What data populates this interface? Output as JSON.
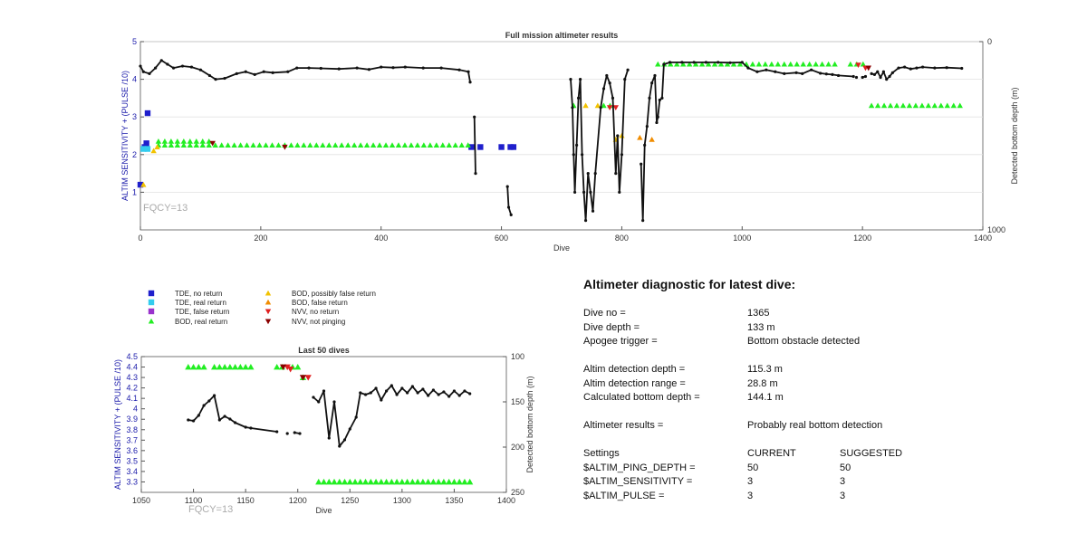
{
  "chart_data": [
    {
      "type": "scatter",
      "title": "Full mission altimeter results",
      "xlabel": "Dive",
      "ylabel": "ALTIM SENSITIVITY + (PULSE /10)",
      "y2label": "Detected bottom depth (m)",
      "xlim": [
        0,
        1400
      ],
      "ylim": [
        0,
        5
      ],
      "y2lim": [
        1000,
        0
      ],
      "x_ticks": [
        "0",
        "200",
        "400",
        "600",
        "800",
        "1000",
        "1200",
        "1400"
      ],
      "y_ticks": [
        "1",
        "2",
        "3",
        "4",
        "5"
      ],
      "y2_ticks": [
        "0",
        "1000"
      ],
      "grid": "horizontal",
      "annotation": "FQCY=13",
      "markers": [
        {
          "class": "TDE, no return",
          "color": "#1f1fcc",
          "points": [
            [
              0,
              1.2
            ],
            [
              7,
              2.2
            ],
            [
              10,
              2.3
            ],
            [
              12,
              3.1
            ],
            [
              550,
              2.2
            ],
            [
              565,
              2.2
            ],
            [
              600,
              2.2
            ],
            [
              615,
              2.2
            ],
            [
              620,
              2.2
            ]
          ]
        },
        {
          "class": "TDE, real return",
          "color": "#33ccee",
          "points": [
            [
              5,
              2.15
            ],
            [
              12,
              2.15
            ]
          ]
        },
        {
          "class": "BOD, real return",
          "color": "#22ee22",
          "segments": [
            [
              30,
              548,
              2.25
            ],
            [
              30,
              120,
              2.35
            ],
            [
              720,
              730,
              3.3
            ],
            [
              770,
              790,
              3.3
            ],
            [
              860,
              1160,
              4.4
            ],
            [
              1180,
              1205,
              4.4
            ],
            [
              1215,
              1365,
              3.3
            ]
          ]
        },
        {
          "class": "BOD, possibly false return",
          "color": "#f2c200",
          "points": [
            [
              5,
              1.2
            ],
            [
              22,
              2.1
            ],
            [
              28,
              2.2
            ],
            [
              740,
              3.3
            ],
            [
              760,
              3.3
            ],
            [
              790,
              2.4
            ],
            [
              800,
              2.5
            ]
          ]
        },
        {
          "class": "BOD, false return",
          "color": "#f08c00",
          "points": [
            [
              830,
              2.45
            ],
            [
              850,
              2.4
            ]
          ]
        },
        {
          "class": "NVV, no return",
          "color": "#e02020",
          "points": [
            [
              780,
              3.25
            ],
            [
              790,
              3.25
            ],
            [
              1193,
              4.38
            ],
            [
              1205,
              4.3
            ]
          ]
        },
        {
          "class": "NVV, not pinging",
          "color": "#8b0000",
          "points": [
            [
              120,
              2.3
            ],
            [
              240,
              2.2
            ],
            [
              1210,
              4.3
            ]
          ]
        }
      ],
      "depth_series": [
        [
          0,
          130
        ],
        [
          5,
          160
        ],
        [
          15,
          170
        ],
        [
          25,
          140
        ],
        [
          35,
          100
        ],
        [
          45,
          120
        ],
        [
          55,
          140
        ],
        [
          70,
          130
        ],
        [
          85,
          135
        ],
        [
          100,
          150
        ],
        [
          115,
          180
        ],
        [
          125,
          200
        ],
        [
          140,
          195
        ],
        [
          160,
          170
        ],
        [
          175,
          160
        ],
        [
          190,
          175
        ],
        [
          205,
          160
        ],
        [
          220,
          165
        ],
        [
          245,
          160
        ],
        [
          260,
          140
        ],
        [
          280,
          140
        ],
        [
          300,
          142
        ],
        [
          330,
          145
        ],
        [
          360,
          140
        ],
        [
          380,
          148
        ],
        [
          400,
          135
        ],
        [
          420,
          138
        ],
        [
          440,
          135
        ],
        [
          470,
          140
        ],
        [
          500,
          140
        ],
        [
          530,
          150
        ],
        [
          545,
          160
        ],
        [
          548,
          215
        ],
        null,
        [
          555,
          400
        ],
        [
          557,
          700
        ],
        null,
        [
          610,
          770
        ],
        [
          612,
          880
        ],
        [
          616,
          920
        ],
        null,
        [
          715,
          200
        ],
        [
          718,
          350
        ],
        [
          720,
          600
        ],
        [
          722,
          800
        ],
        [
          725,
          550
        ],
        [
          728,
          300
        ],
        [
          731,
          200
        ],
        [
          734,
          600
        ],
        [
          737,
          800
        ],
        [
          740,
          950
        ],
        [
          744,
          700
        ],
        [
          748,
          800
        ],
        [
          752,
          900
        ],
        [
          756,
          700
        ],
        [
          765,
          350
        ],
        [
          770,
          250
        ],
        [
          775,
          180
        ],
        [
          780,
          220
        ],
        [
          785,
          300
        ],
        [
          790,
          700
        ],
        [
          793,
          500
        ],
        [
          796,
          800
        ],
        [
          800,
          600
        ],
        [
          805,
          200
        ],
        [
          810,
          150
        ],
        null,
        [
          832,
          650
        ],
        [
          835,
          950
        ],
        [
          838,
          550
        ],
        [
          842,
          450
        ],
        [
          846,
          300
        ],
        [
          850,
          220
        ],
        [
          855,
          180
        ],
        [
          858,
          430
        ],
        [
          860,
          400
        ],
        [
          863,
          310
        ],
        [
          867,
          300
        ],
        [
          870,
          120
        ],
        [
          880,
          110
        ],
        [
          900,
          110
        ],
        [
          920,
          110
        ],
        [
          940,
          110
        ],
        [
          960,
          110
        ],
        [
          980,
          112
        ],
        [
          1000,
          110
        ],
        [
          1010,
          140
        ],
        [
          1025,
          160
        ],
        [
          1040,
          150
        ],
        [
          1055,
          160
        ],
        [
          1070,
          170
        ],
        [
          1090,
          165
        ],
        [
          1100,
          170
        ],
        [
          1115,
          150
        ],
        [
          1130,
          168
        ],
        [
          1140,
          172
        ],
        [
          1150,
          175
        ],
        [
          1160,
          180
        ],
        [
          1185,
          185
        ],
        null,
        [
          1190,
          190
        ],
        null,
        [
          1200,
          190
        ],
        [
          1205,
          185
        ],
        null,
        [
          1215,
          170
        ],
        [
          1220,
          175
        ],
        [
          1225,
          160
        ],
        [
          1230,
          190
        ],
        [
          1235,
          160
        ],
        [
          1240,
          200
        ],
        [
          1245,
          185
        ],
        [
          1250,
          165
        ],
        [
          1260,
          140
        ],
        [
          1270,
          135
        ],
        [
          1280,
          145
        ],
        [
          1290,
          140
        ],
        [
          1300,
          135
        ],
        [
          1320,
          140
        ],
        [
          1340,
          138
        ],
        [
          1365,
          142
        ]
      ]
    },
    {
      "type": "scatter",
      "title": "Last 50 dives",
      "xlabel": "Dive",
      "ylabel": "ALTIM SENSITIVITY + (PULSE /10)",
      "y2label": "Detected bottom depth (m)",
      "xlim": [
        1050,
        1400
      ],
      "ylim": [
        3.2,
        4.5
      ],
      "y2lim": [
        250,
        100
      ],
      "x_ticks": [
        "1050",
        "1100",
        "1150",
        "1200",
        "1250",
        "1300",
        "1350",
        "1400"
      ],
      "y_ticks": [
        "3.3",
        "3.4",
        "3.5",
        "3.6",
        "3.7",
        "3.8",
        "3.9",
        "4",
        "4.1",
        "4.2",
        "4.3",
        "4.4",
        "4.5"
      ],
      "y2_ticks": [
        "100",
        "150",
        "200",
        "250"
      ],
      "annotation": "FQCY=13",
      "markers": [
        {
          "class": "BOD, real return",
          "color": "#22ee22",
          "x": [
            1095,
            1100,
            1105,
            1110,
            1120,
            1125,
            1130,
            1135,
            1140,
            1145,
            1150,
            1155,
            1180,
            1185,
            1195,
            1200,
            1205,
            1220,
            1225,
            1230,
            1235,
            1240,
            1245,
            1250,
            1255,
            1260,
            1265,
            1270,
            1275,
            1280,
            1285,
            1290,
            1295,
            1300,
            1305,
            1310,
            1315,
            1320,
            1325,
            1330,
            1335,
            1340,
            1345,
            1350,
            1355,
            1360,
            1365
          ],
          "y": [
            4.4,
            4.4,
            4.4,
            4.4,
            4.4,
            4.4,
            4.4,
            4.4,
            4.4,
            4.4,
            4.4,
            4.4,
            4.4,
            4.4,
            4.4,
            4.4,
            4.3,
            3.3,
            3.3,
            3.3,
            3.3,
            3.3,
            3.3,
            3.3,
            3.3,
            3.3,
            3.3,
            3.3,
            3.3,
            3.3,
            3.3,
            3.3,
            3.3,
            3.3,
            3.3,
            3.3,
            3.3,
            3.3,
            3.3,
            3.3,
            3.3,
            3.3,
            3.3,
            3.3,
            3.3,
            3.3,
            3.3
          ]
        },
        {
          "class": "NVV, no return",
          "color": "#e02020",
          "x": [
            1190,
            1193,
            1210
          ],
          "y": [
            4.4,
            4.38,
            4.3
          ]
        },
        {
          "class": "NVV, not pinging",
          "color": "#8b0000",
          "x": [
            1186,
            1205
          ],
          "y": [
            4.4,
            4.3
          ]
        }
      ],
      "depth_series": [
        [
          1095,
          170
        ],
        [
          1100,
          171
        ],
        [
          1105,
          165
        ],
        [
          1110,
          154
        ],
        [
          1115,
          149
        ],
        [
          1120,
          143
        ],
        [
          1125,
          170
        ],
        [
          1130,
          166
        ],
        [
          1135,
          169
        ],
        [
          1140,
          173
        ],
        [
          1150,
          178
        ],
        [
          1155,
          179
        ],
        [
          1180,
          183
        ],
        null,
        [
          1190,
          185
        ],
        null,
        [
          1197,
          184
        ],
        [
          1202,
          185
        ],
        null,
        [
          1215,
          145
        ],
        [
          1220,
          150
        ],
        [
          1225,
          138
        ],
        [
          1230,
          190
        ],
        [
          1235,
          150
        ],
        [
          1240,
          199
        ],
        [
          1245,
          192
        ],
        [
          1250,
          180
        ],
        [
          1256,
          167
        ],
        [
          1260,
          140
        ],
        [
          1265,
          142
        ],
        [
          1270,
          140
        ],
        [
          1275,
          135
        ],
        [
          1280,
          148
        ],
        [
          1285,
          138
        ],
        [
          1290,
          132
        ],
        [
          1295,
          142
        ],
        [
          1300,
          135
        ],
        [
          1305,
          140
        ],
        [
          1310,
          133
        ],
        [
          1315,
          140
        ],
        [
          1320,
          136
        ],
        [
          1325,
          143
        ],
        [
          1330,
          137
        ],
        [
          1335,
          142
        ],
        [
          1340,
          139
        ],
        [
          1345,
          144
        ],
        [
          1350,
          138
        ],
        [
          1355,
          143
        ],
        [
          1360,
          138
        ],
        [
          1365,
          141
        ]
      ]
    }
  ],
  "legend": {
    "items": [
      {
        "label": "TDE, no return",
        "color": "#1f1fcc",
        "shape": "square"
      },
      {
        "label": "TDE, real return",
        "color": "#33ccee",
        "shape": "square"
      },
      {
        "label": "TDE, false return",
        "color": "#9933cc",
        "shape": "square"
      },
      {
        "label": "BOD, real return",
        "color": "#22ee22",
        "shape": "triangle-up"
      },
      {
        "label": "BOD, possibly false return",
        "color": "#f2c200",
        "shape": "triangle-up"
      },
      {
        "label": "BOD, false return",
        "color": "#f08c00",
        "shape": "triangle-up"
      },
      {
        "label": "NVV, no return",
        "color": "#e02020",
        "shape": "triangle-down"
      },
      {
        "label": "NVV, not pinging",
        "color": "#8b0000",
        "shape": "triangle-down"
      }
    ]
  },
  "diagnostic": {
    "title": "Altimeter diagnostic for latest dive:",
    "dive_no_label": "Dive no =",
    "dive_no": "1365",
    "dive_depth_label": "Dive depth =",
    "dive_depth": "133 m",
    "apogee_label": "Apogee trigger =",
    "apogee": "Bottom obstacle detected",
    "det_depth_label": "Altim detection depth =",
    "det_depth": "115.3 m",
    "det_range_label": "Altim detection range =",
    "det_range": "28.8 m",
    "calc_depth_label": "Calculated bottom depth =",
    "calc_depth": "144.1 m",
    "results_label": "Altimeter results =",
    "results": "Probably real bottom detection",
    "settings_label": "Settings",
    "current_label": "CURRENT",
    "suggested_label": "SUGGESTED",
    "settings": [
      {
        "name": "$ALTIM_PING_DEPTH =",
        "current": "50",
        "suggested": "50"
      },
      {
        "name": "$ALTIM_SENSITIVITY =",
        "current": "3",
        "suggested": "3"
      },
      {
        "name": "$ALTIM_PULSE =",
        "current": "3",
        "suggested": "3"
      }
    ]
  }
}
